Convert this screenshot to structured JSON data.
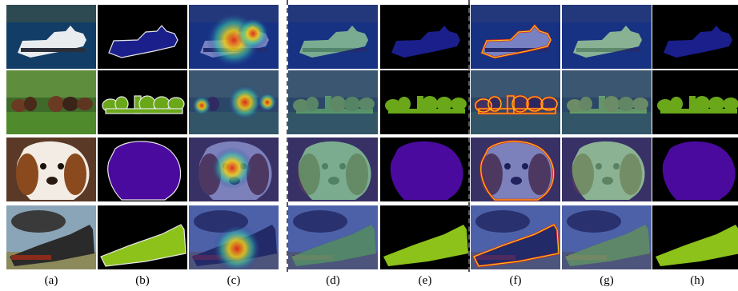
{
  "figure": {
    "column_labels": [
      "(a)",
      "(b)",
      "(c)",
      "(d)",
      "(e)",
      "(f)",
      "(g)",
      "(h)"
    ],
    "rows": [
      "boat",
      "cows",
      "dog",
      "train"
    ],
    "colors": {
      "boat_mask": "#1a1f8c",
      "cow_mask": "#6aa81a",
      "dog_mask": "#4b0a9e",
      "train_mask": "#8cc21a",
      "mask_outline": "#e8e8e8",
      "heat_low": "#1b2a9a",
      "heat_high": "#e52817",
      "background": "#000000"
    }
  }
}
